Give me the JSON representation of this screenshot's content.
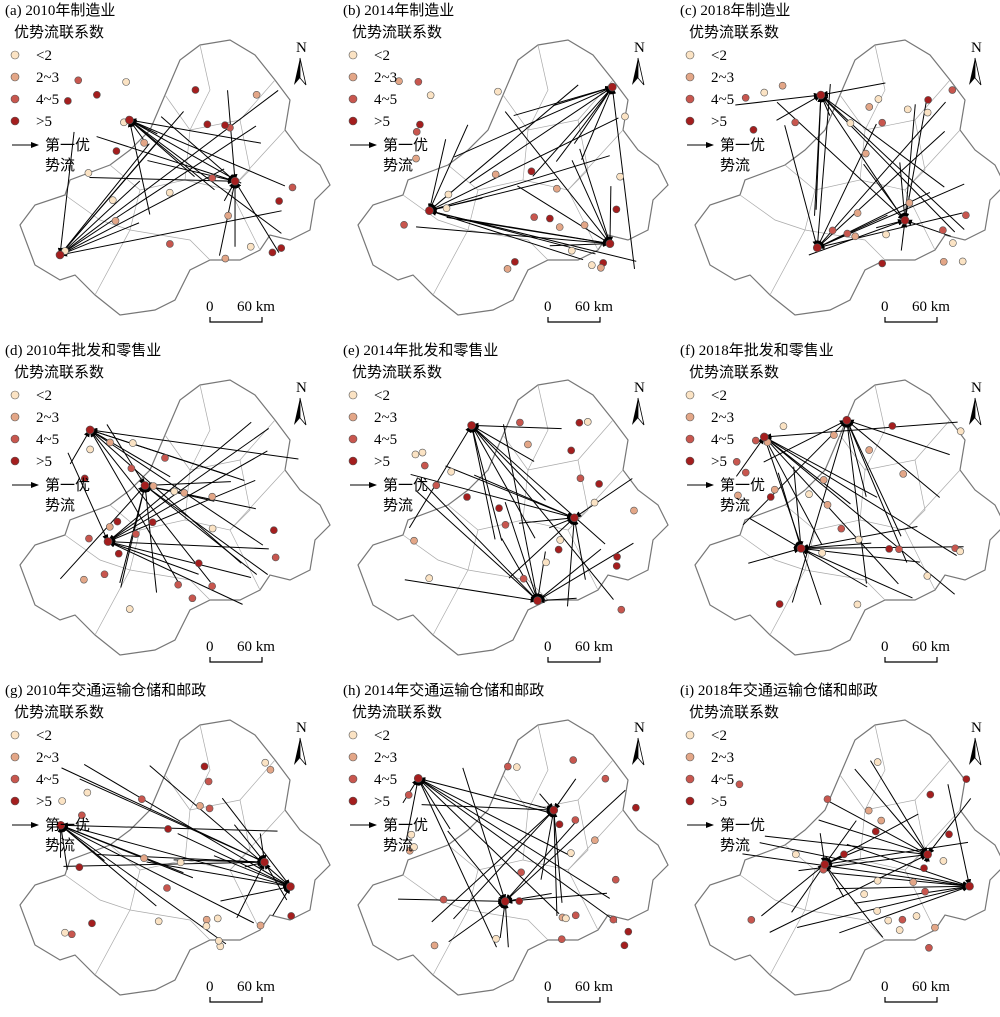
{
  "panels": [
    {
      "title": "(a) 2010年制造业"
    },
    {
      "title": "(b) 2014年制造业"
    },
    {
      "title": "(c) 2018年制造业"
    },
    {
      "title": "(d) 2010年批发和零售业"
    },
    {
      "title": "(e) 2014年批发和零售业"
    },
    {
      "title": "(f) 2018年批发和零售业"
    },
    {
      "title": "(g) 2010年交通运输仓储和邮政"
    },
    {
      "title": "(h) 2014年交通运输仓储和邮政"
    },
    {
      "title": "(i) 2018年交通运输仓储和邮政"
    }
  ],
  "legend": {
    "title": "优势流联系数",
    "items": [
      "<2",
      "2~3",
      "4~5",
      ">5"
    ],
    "arrow_label": [
      "第一优",
      "势流"
    ]
  },
  "scale": {
    "zero": "0",
    "length": "60 km"
  },
  "north": "N"
}
